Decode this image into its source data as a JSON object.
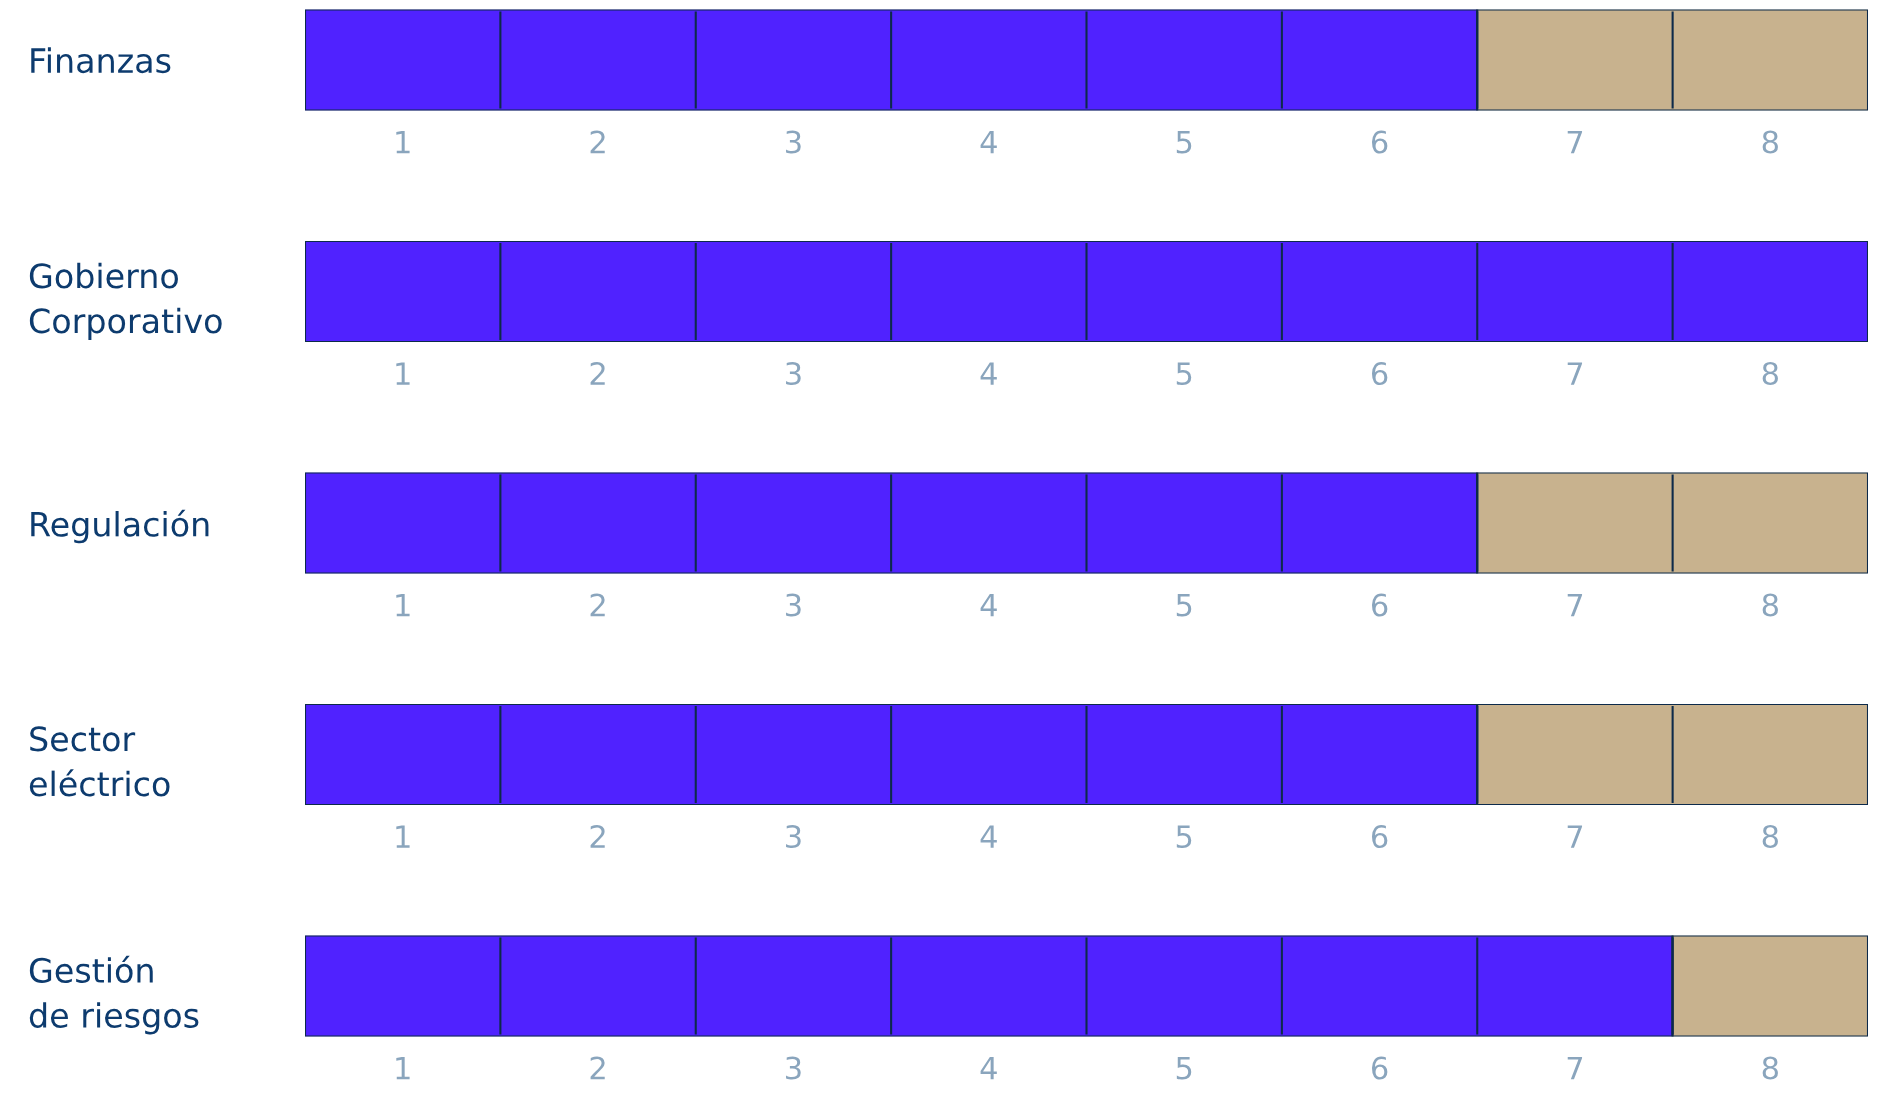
{
  "chart_data": [
    {
      "type": "bar",
      "orientation": "horizontal",
      "stacked": true,
      "categories": [
        "Finanzas"
      ],
      "series": [
        {
          "color": "#5022ff",
          "values": [
            6
          ]
        },
        {
          "color": "#c8b28e",
          "values": [
            2
          ]
        }
      ],
      "xlim": [
        0,
        8
      ],
      "xticks": [
        {
          "value": 0.5,
          "label": "1"
        },
        {
          "value": 1.5,
          "label": "2"
        },
        {
          "value": 2.5,
          "label": "3"
        },
        {
          "value": 3.5,
          "label": "4"
        },
        {
          "value": 4.5,
          "label": "5"
        },
        {
          "value": 5.5,
          "label": "6"
        },
        {
          "value": 6.5,
          "label": "7"
        },
        {
          "value": 7.5,
          "label": "8"
        }
      ]
    },
    {
      "type": "bar",
      "orientation": "horizontal",
      "stacked": true,
      "categories": [
        "Gobierno\nCorporativo"
      ],
      "series": [
        {
          "color": "#5022ff",
          "values": [
            8
          ]
        },
        {
          "color": "#c8b28e",
          "values": [
            0
          ]
        }
      ],
      "xlim": [
        0,
        8
      ],
      "xticks": [
        {
          "value": 0.5,
          "label": "1"
        },
        {
          "value": 1.5,
          "label": "2"
        },
        {
          "value": 2.5,
          "label": "3"
        },
        {
          "value": 3.5,
          "label": "4"
        },
        {
          "value": 4.5,
          "label": "5"
        },
        {
          "value": 5.5,
          "label": "6"
        },
        {
          "value": 6.5,
          "label": "7"
        },
        {
          "value": 7.5,
          "label": "8"
        }
      ]
    },
    {
      "type": "bar",
      "orientation": "horizontal",
      "stacked": true,
      "categories": [
        "Regulación"
      ],
      "series": [
        {
          "color": "#5022ff",
          "values": [
            6
          ]
        },
        {
          "color": "#c8b28e",
          "values": [
            2
          ]
        }
      ],
      "xlim": [
        0,
        8
      ],
      "xticks": [
        {
          "value": 0.5,
          "label": "1"
        },
        {
          "value": 1.5,
          "label": "2"
        },
        {
          "value": 2.5,
          "label": "3"
        },
        {
          "value": 3.5,
          "label": "4"
        },
        {
          "value": 4.5,
          "label": "5"
        },
        {
          "value": 5.5,
          "label": "6"
        },
        {
          "value": 6.5,
          "label": "7"
        },
        {
          "value": 7.5,
          "label": "8"
        }
      ]
    },
    {
      "type": "bar",
      "orientation": "horizontal",
      "stacked": true,
      "categories": [
        "Sector\neléctrico"
      ],
      "series": [
        {
          "color": "#5022ff",
          "values": [
            6
          ]
        },
        {
          "color": "#c8b28e",
          "values": [
            2
          ]
        }
      ],
      "xlim": [
        0,
        8
      ],
      "xticks": [
        {
          "value": 0.5,
          "label": "1"
        },
        {
          "value": 1.5,
          "label": "2"
        },
        {
          "value": 2.5,
          "label": "3"
        },
        {
          "value": 3.5,
          "label": "4"
        },
        {
          "value": 4.5,
          "label": "5"
        },
        {
          "value": 5.5,
          "label": "6"
        },
        {
          "value": 6.5,
          "label": "7"
        },
        {
          "value": 7.5,
          "label": "8"
        }
      ]
    },
    {
      "type": "bar",
      "orientation": "horizontal",
      "stacked": true,
      "categories": [
        "Gestión\nde riesgos"
      ],
      "series": [
        {
          "color": "#5022ff",
          "values": [
            7
          ]
        },
        {
          "color": "#c8b28e",
          "values": [
            1
          ]
        }
      ],
      "xlim": [
        0,
        8
      ],
      "xticks": [
        {
          "value": 0.5,
          "label": "1"
        },
        {
          "value": 1.5,
          "label": "2"
        },
        {
          "value": 2.5,
          "label": "3"
        },
        {
          "value": 3.5,
          "label": "4"
        },
        {
          "value": 4.5,
          "label": "5"
        },
        {
          "value": 5.5,
          "label": "6"
        },
        {
          "value": 6.5,
          "label": "7"
        },
        {
          "value": 7.5,
          "label": "8"
        }
      ]
    }
  ]
}
